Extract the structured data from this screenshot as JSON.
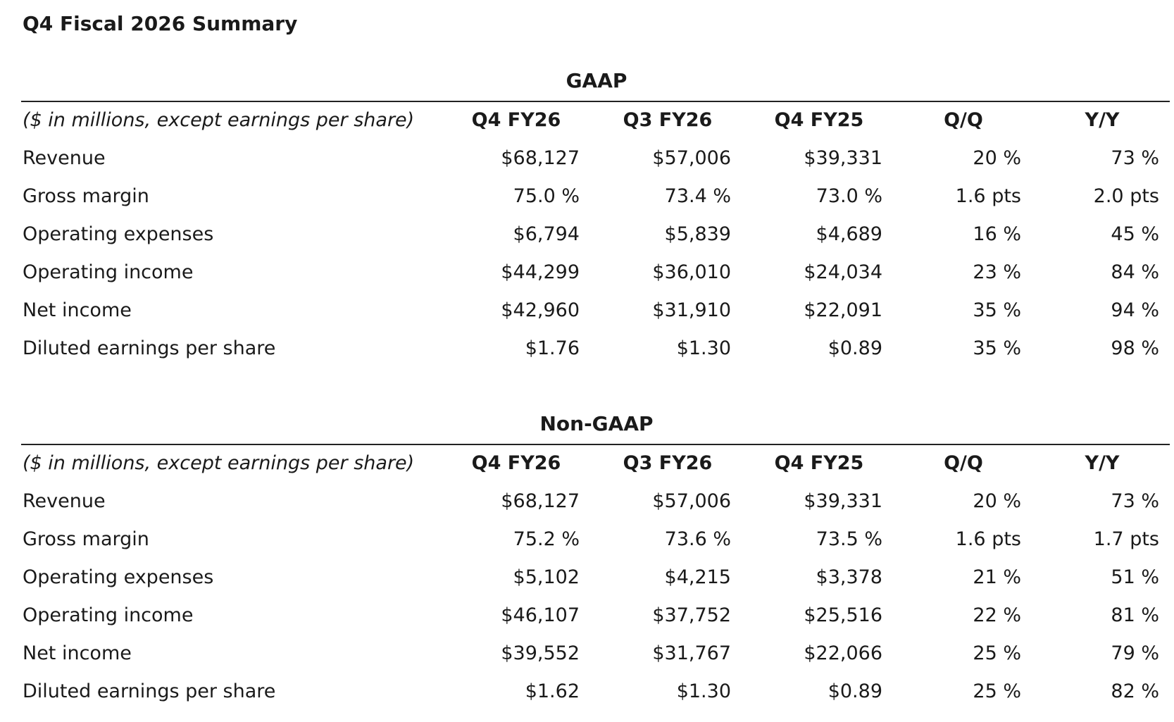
{
  "title": "Q4 Fiscal 2026 Summary",
  "sections": [
    {
      "heading": "GAAP",
      "columns": [
        "($ in millions, except earnings per share)",
        "Q4 FY26",
        "Q3 FY26",
        "Q4 FY25",
        "Q/Q",
        "Y/Y"
      ],
      "rows": [
        [
          "Revenue",
          "$68,127",
          "$57,006",
          "$39,331",
          "20 %",
          "73 %"
        ],
        [
          "Gross margin",
          "75.0 %",
          "73.4 %",
          "73.0 %",
          "1.6 pts",
          "2.0 pts"
        ],
        [
          "Operating expenses",
          "$6,794",
          "$5,839",
          "$4,689",
          "16 %",
          "45 %"
        ],
        [
          "Operating income",
          "$44,299",
          "$36,010",
          "$24,034",
          "23 %",
          "84 %"
        ],
        [
          "Net income",
          "$42,960",
          "$31,910",
          "$22,091",
          "35 %",
          "94 %"
        ],
        [
          "Diluted earnings per share",
          "$1.76",
          "$1.30",
          "$0.89",
          "35 %",
          "98 %"
        ]
      ]
    },
    {
      "heading": "Non-GAAP",
      "columns": [
        "($ in millions, except earnings per share)",
        "Q4 FY26",
        "Q3 FY26",
        "Q4 FY25",
        "Q/Q",
        "Y/Y"
      ],
      "rows": [
        [
          "Revenue",
          "$68,127",
          "$57,006",
          "$39,331",
          "20 %",
          "73 %"
        ],
        [
          "Gross margin",
          "75.2 %",
          "73.6 %",
          "73.5 %",
          "1.6 pts",
          "1.7 pts"
        ],
        [
          "Operating expenses",
          "$5,102",
          "$4,215",
          "$3,378",
          "21 %",
          "51 %"
        ],
        [
          "Operating income",
          "$46,107",
          "$37,752",
          "$25,516",
          "22 %",
          "81 %"
        ],
        [
          "Net income",
          "$39,552",
          "$31,767",
          "$22,066",
          "25 %",
          "79 %"
        ],
        [
          "Diluted earnings per share",
          "$1.62",
          "$1.30",
          "$0.89",
          "25 %",
          "82 %"
        ]
      ]
    }
  ]
}
